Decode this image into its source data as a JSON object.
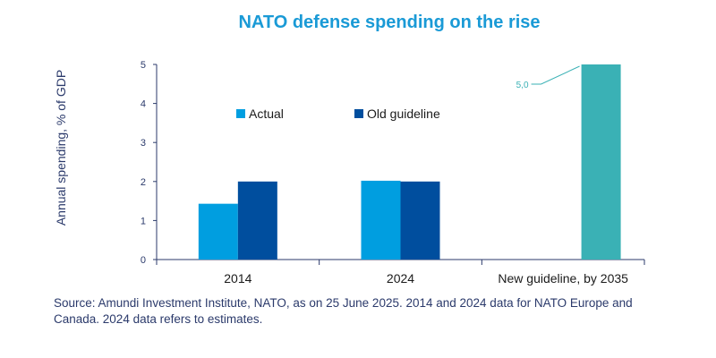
{
  "chart_data": {
    "type": "bar",
    "title": "NATO defense spending on the rise",
    "ylabel": "Annual spending, % of GDP",
    "xlabel": "",
    "ylim": [
      0,
      5
    ],
    "yticks": [
      "0",
      "1",
      "2",
      "3",
      "4",
      "5"
    ],
    "categories": [
      "2014",
      "2024",
      "New guideline, by 2035"
    ],
    "series": [
      {
        "name": "Actual",
        "color": "#009ee0",
        "values": [
          1.43,
          2.02,
          null
        ]
      },
      {
        "name": "Old guideline",
        "color": "#004e9e",
        "values": [
          2.0,
          2.0,
          null
        ]
      },
      {
        "name": "New guideline",
        "color": "#3ab1b5",
        "values": [
          null,
          null,
          5.0
        ],
        "legend": false
      }
    ],
    "annotations": [
      {
        "text": "5,0",
        "category": "New guideline, by 2035",
        "series": "New guideline"
      }
    ],
    "legend_position": "top-center",
    "grid": false
  },
  "source_note": "Source: Amundi Investment Institute, NATO, as on 25 June 2025. 2014 and 2024 data for NATO Europe and Canada. 2024 data refers to estimates."
}
